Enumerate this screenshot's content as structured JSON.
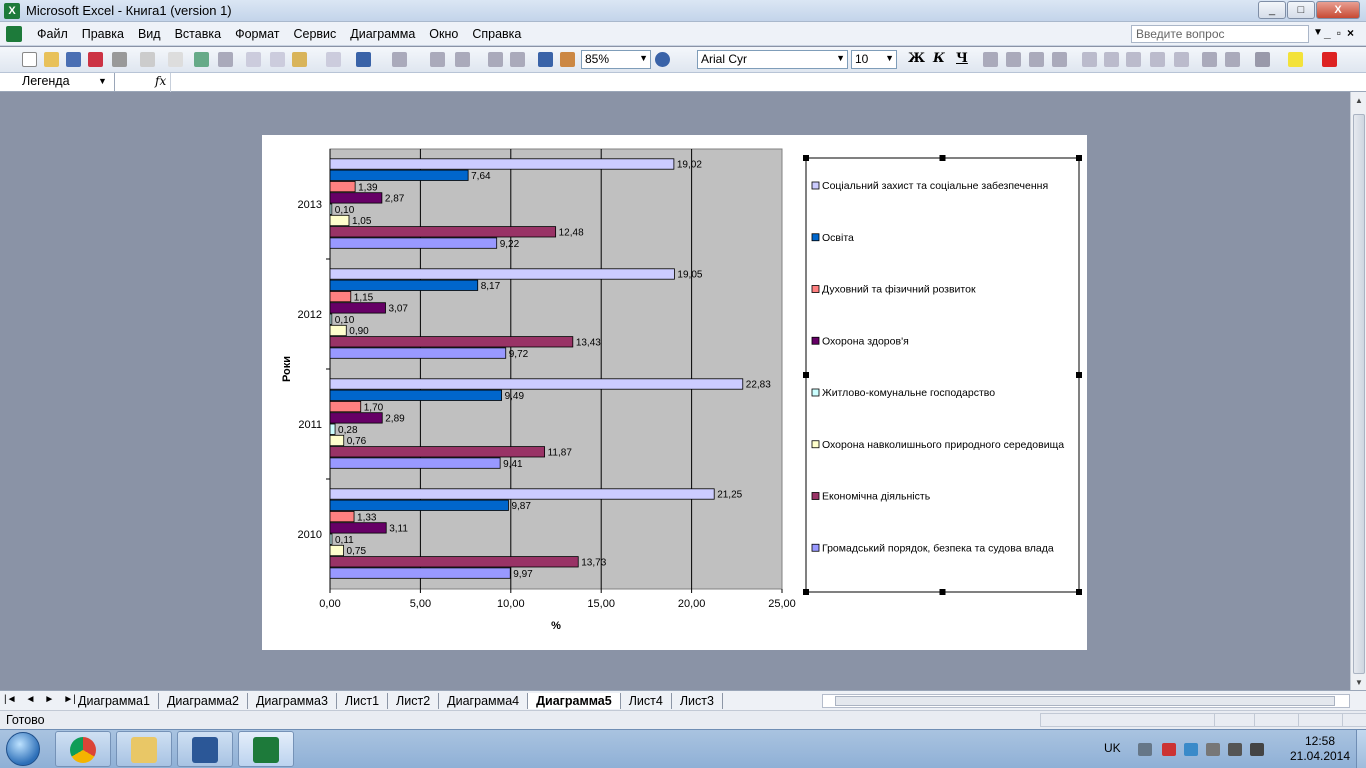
{
  "window": {
    "title": "Microsoft Excel - Книга1 (version 1)",
    "min_label": "_",
    "max_label": "□",
    "close_label": "X"
  },
  "menu": {
    "items": [
      "Файл",
      "Правка",
      "Вид",
      "Вставка",
      "Формат",
      "Сервис",
      "Диаграмма",
      "Окно",
      "Справка"
    ],
    "help_placeholder": "Введите вопрос"
  },
  "toolbar": {
    "zoom": "85%",
    "font": "Arial Cyr",
    "size": "10",
    "bold": "Ж",
    "italic": "К",
    "underline": "Ч"
  },
  "formula_bar": {
    "name_box": "Легенда",
    "fx_label": "fx"
  },
  "chart_data": {
    "type": "bar",
    "orientation": "horizontal",
    "categories": [
      "2013",
      "2012",
      "2011",
      "2010"
    ],
    "xlabel": "%",
    "ylabel": "Роки",
    "xlim": [
      0,
      25
    ],
    "x_ticks": [
      "0,00",
      "5,00",
      "10,00",
      "15,00",
      "20,00",
      "25,00"
    ],
    "grid": true,
    "legend_position": "right",
    "plot_background": "#c0c0c0",
    "series": [
      {
        "name": "Соціальний захист та соціальне забезпечення",
        "color": "#ccccff",
        "values": [
          19.02,
          19.05,
          22.83,
          21.25
        ],
        "labels": [
          "19,02",
          "19,05",
          "22,83",
          "21,25"
        ]
      },
      {
        "name": "Освіта",
        "color": "#0066cc",
        "values": [
          7.64,
          8.17,
          9.49,
          9.87
        ],
        "labels": [
          "7,64",
          "8,17",
          "9,49",
          "9,87"
        ]
      },
      {
        "name": "Духовний та фізичний розвиток",
        "color": "#ff8080",
        "values": [
          1.39,
          1.15,
          1.7,
          1.33
        ],
        "labels": [
          "1,39",
          "1,15",
          "1,70",
          "1,33"
        ]
      },
      {
        "name": "Охорона здоров'я",
        "color": "#660066",
        "values": [
          2.87,
          3.07,
          2.89,
          3.11
        ],
        "labels": [
          "2,87",
          "3,07",
          "2,89",
          "3,11"
        ]
      },
      {
        "name": "Житлово-комунальне господарство",
        "color": "#ccffff",
        "values": [
          0.1,
          0.1,
          0.28,
          0.11
        ],
        "labels": [
          "0,10",
          "0,10",
          "0,28",
          "0,11"
        ]
      },
      {
        "name": "Охорона навколишнього природного середовища",
        "color": "#ffffcc",
        "values": [
          1.05,
          0.9,
          0.76,
          0.75
        ],
        "labels": [
          "1,05",
          "0,90",
          "0,76",
          "0,75"
        ]
      },
      {
        "name": "Економічна діяльність",
        "color": "#993366",
        "values": [
          12.48,
          13.43,
          11.87,
          13.73
        ],
        "labels": [
          "12,48",
          "13,43",
          "11,87",
          "13,73"
        ]
      },
      {
        "name": "Громадський порядок, безпека та судова влада",
        "color": "#9999ff",
        "values": [
          9.22,
          9.72,
          9.41,
          9.97
        ],
        "labels": [
          "9,22",
          "9,72",
          "9,41",
          "9,97"
        ]
      }
    ]
  },
  "sheet_tabs": {
    "items": [
      "Диаграмма1",
      "Диаграмма2",
      "Диаграмма3",
      "Лист1",
      "Лист2",
      "Диаграмма4",
      "Диаграмма5",
      "Лист4",
      "Лист3"
    ],
    "active": "Диаграмма5"
  },
  "status": {
    "text": "Готово"
  },
  "taskbar": {
    "lang": "UK",
    "time": "12:58",
    "date": "21.04.2014"
  }
}
